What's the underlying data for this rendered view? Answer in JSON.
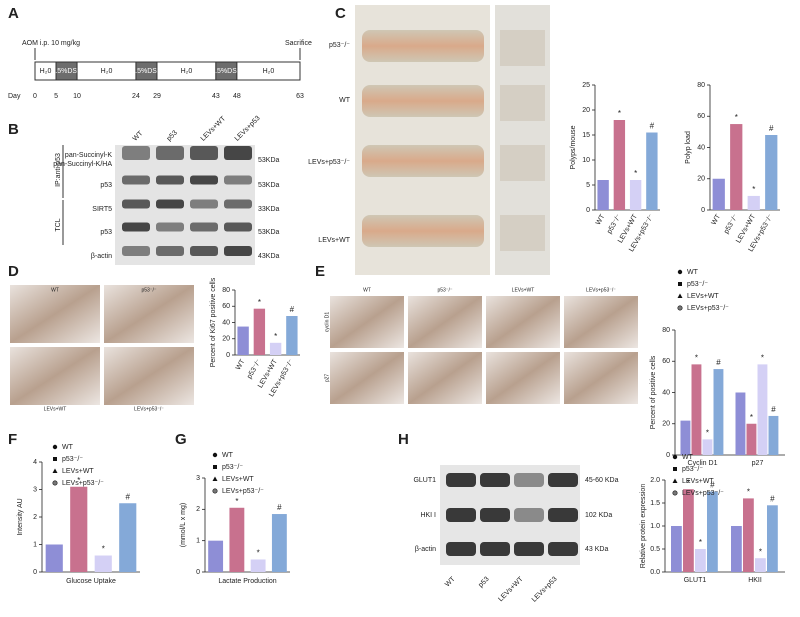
{
  "panel_labels": [
    "A",
    "B",
    "C",
    "D",
    "E",
    "F",
    "G",
    "H"
  ],
  "panel_a": {
    "aom": "AOM i.p. 10 mg/kg",
    "sacrifice": "Sacrifice",
    "segments": [
      "H₂0",
      "2.5%DSS",
      "H₂0",
      "2.5%DSS",
      "H₂0",
      "2.5%DSS",
      "H₂0"
    ],
    "day_label": "Day",
    "days": [
      0,
      5,
      10,
      24,
      29,
      43,
      48,
      63
    ]
  },
  "panel_b": {
    "groups": [
      "IP:anti-p53",
      "TCL"
    ],
    "lanes": [
      "WT",
      "p53",
      "LEVs+WT",
      "LEVs+p53"
    ],
    "row_labels": [
      "pan-Succinyl-K",
      "pan-Succinyl-K/HA",
      "p53",
      "SIRT5",
      "p53",
      "β-actin"
    ],
    "sizes": [
      "53KDa",
      "53KDa",
      "33KDa",
      "53KDa",
      "43KDa"
    ]
  },
  "panel_c": {
    "rows": [
      "p53⁻/⁻",
      "WT",
      "LEVs+p53⁻/⁻",
      "LEVs+WT"
    ]
  },
  "panel_d": {
    "images": [
      "WT",
      "p53⁻/⁻",
      "LEVs+WT",
      "LEVs+p53⁻/⁻"
    ]
  },
  "panel_e": {
    "columns": [
      "WT",
      "p53⁻/⁻",
      "LEVs+WT",
      "LEVs+p53⁻/⁻"
    ],
    "rows": [
      "cyclin D1",
      "p27"
    ]
  },
  "panel_h": {
    "rows": [
      "GLUT1",
      "HKI I",
      "β-actin"
    ],
    "sizes": [
      "45-60 KDa",
      "102 KDa",
      "43 KDa"
    ],
    "lanes": [
      "WT",
      "p53",
      "LEVs+WT",
      "LEVs+p53"
    ]
  },
  "chart_data": [
    {
      "type": "bar",
      "ylabel": "Polyps/mouse",
      "categories": [
        "WT",
        "p53⁻/⁻",
        "LEVs+WT",
        "LEVs+p53⁻/⁻"
      ],
      "values": [
        6,
        18,
        6,
        15.5
      ],
      "marks": [
        null,
        "*",
        "*",
        "#"
      ],
      "colors": [
        "#8e8ed6",
        "#c8718e",
        "#d4d0f5",
        "#84a9d8"
      ],
      "ylim": [
        0,
        25
      ],
      "yticks": [
        0,
        5,
        10,
        15,
        20,
        25
      ]
    },
    {
      "type": "bar",
      "ylabel": "Polyp load",
      "categories": [
        "WT",
        "p53⁻/⁻",
        "LEVs+WT",
        "LEVs+p53⁻/⁻"
      ],
      "values": [
        20,
        55,
        9,
        48
      ],
      "marks": [
        null,
        "*",
        "*",
        "#"
      ],
      "colors": [
        "#8e8ed6",
        "#c8718e",
        "#d4d0f5",
        "#84a9d8"
      ],
      "ylim": [
        0,
        80
      ],
      "yticks": [
        0,
        20,
        40,
        60,
        80
      ]
    },
    {
      "type": "bar",
      "ylabel": "Percent of Ki67 positive cells",
      "categories": [
        "WT",
        "p53⁻/⁻",
        "LEVs+WT",
        "LEVs+p53⁻/⁻"
      ],
      "values": [
        35,
        57,
        15,
        48
      ],
      "marks": [
        null,
        "*",
        "*",
        "#"
      ],
      "colors": [
        "#8e8ed6",
        "#c8718e",
        "#d4d0f5",
        "#84a9d8"
      ],
      "ylim": [
        0,
        80
      ],
      "yticks": [
        0,
        20,
        40,
        60,
        80
      ]
    },
    {
      "type": "grouped_bar",
      "ylabel": "Percent of positive cells",
      "categories": [
        "Cyclin D1",
        "p27"
      ],
      "series": [
        {
          "name": "WT",
          "color": "#8e8ed6",
          "values": [
            22,
            40
          ],
          "marks": [
            null,
            null
          ]
        },
        {
          "name": "p53⁻/⁻",
          "color": "#c8718e",
          "values": [
            58,
            20
          ],
          "marks": [
            "*",
            "*"
          ]
        },
        {
          "name": "LEVs+WT",
          "color": "#d4d0f5",
          "values": [
            10,
            58
          ],
          "marks": [
            "*",
            "*"
          ]
        },
        {
          "name": "LEVs+p53⁻/⁻",
          "color": "#84a9d8",
          "values": [
            55,
            25
          ],
          "marks": [
            "#",
            "#"
          ]
        }
      ],
      "ylim": [
        0,
        80
      ],
      "yticks": [
        0,
        20,
        40,
        60,
        80
      ]
    },
    {
      "type": "bar",
      "legend": true,
      "ylabel": "Intensity AU",
      "xlabel": "Glucose Uptake",
      "categories": [
        "WT",
        "p53⁻/⁻",
        "LEVs+WT",
        "LEVs+p53⁻/⁻"
      ],
      "values": [
        1.0,
        3.1,
        0.6,
        2.5
      ],
      "marks": [
        null,
        "*",
        "*",
        "#"
      ],
      "colors": [
        "#8e8ed6",
        "#c8718e",
        "#d4d0f5",
        "#84a9d8"
      ],
      "ylim": [
        0,
        4
      ],
      "yticks": [
        0,
        1,
        2,
        3,
        4
      ]
    },
    {
      "type": "bar",
      "legend": true,
      "ylabel": "(mmol/L x mg)",
      "xlabel": "Lactate Production",
      "categories": [
        "WT",
        "p53⁻/⁻",
        "LEVs+WT",
        "LEVs+p53⁻/⁻"
      ],
      "values": [
        1.0,
        2.05,
        0.4,
        1.85
      ],
      "marks": [
        null,
        "*",
        "*",
        "#"
      ],
      "colors": [
        "#8e8ed6",
        "#c8718e",
        "#d4d0f5",
        "#84a9d8"
      ],
      "ylim": [
        0,
        3
      ],
      "yticks": [
        0,
        1,
        2,
        3
      ]
    },
    {
      "type": "grouped_bar",
      "ylabel": "Relative protein expression",
      "categories": [
        "GLUT1",
        "HKII"
      ],
      "series": [
        {
          "name": "WT",
          "color": "#8e8ed6",
          "values": [
            1.0,
            1.0
          ],
          "marks": [
            null,
            null
          ]
        },
        {
          "name": "p53⁻/⁻",
          "color": "#c8718e",
          "values": [
            1.8,
            1.6
          ],
          "marks": [
            "*",
            "*"
          ]
        },
        {
          "name": "LEVs+WT",
          "color": "#d4d0f5",
          "values": [
            0.5,
            0.3
          ],
          "marks": [
            "*",
            "*"
          ]
        },
        {
          "name": "LEVs+p53⁻/⁻",
          "color": "#84a9d8",
          "values": [
            1.75,
            1.45
          ],
          "marks": [
            "#",
            "#"
          ]
        }
      ],
      "ylim": [
        0,
        2
      ],
      "yticks": [
        {
          "value": 0,
          "label": "0.0"
        },
        {
          "value": 0.5,
          "label": "0.5"
        },
        {
          "value": 1,
          "label": "1.0"
        },
        {
          "value": 1.5,
          "label": "1.5"
        },
        {
          "value": 2,
          "label": "2.0"
        }
      ]
    }
  ]
}
